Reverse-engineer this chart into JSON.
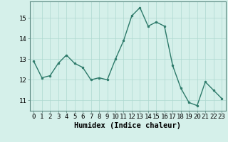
{
  "x": [
    0,
    1,
    2,
    3,
    4,
    5,
    6,
    7,
    8,
    9,
    10,
    11,
    12,
    13,
    14,
    15,
    16,
    17,
    18,
    19,
    20,
    21,
    22,
    23
  ],
  "y": [
    12.9,
    12.1,
    12.2,
    12.8,
    13.2,
    12.8,
    12.6,
    12.0,
    12.1,
    12.0,
    13.0,
    13.9,
    15.1,
    15.5,
    14.6,
    14.8,
    14.6,
    12.7,
    11.6,
    10.9,
    10.75,
    11.9,
    11.5,
    11.1
  ],
  "line_color": "#2d7a6a",
  "marker_color": "#2d7a6a",
  "bg_color": "#d5f0ea",
  "grid_color": "#aed8d0",
  "xlabel": "Humidex (Indice chaleur)",
  "ylim": [
    10.5,
    15.8
  ],
  "xlim": [
    -0.5,
    23.5
  ],
  "yticks": [
    11,
    12,
    13,
    14,
    15
  ],
  "xticks": [
    0,
    1,
    2,
    3,
    4,
    5,
    6,
    7,
    8,
    9,
    10,
    11,
    12,
    13,
    14,
    15,
    16,
    17,
    18,
    19,
    20,
    21,
    22,
    23
  ],
  "xtick_labels": [
    "0",
    "1",
    "2",
    "3",
    "4",
    "5",
    "6",
    "7",
    "8",
    "9",
    "10",
    "11",
    "12",
    "13",
    "14",
    "15",
    "16",
    "17",
    "18",
    "19",
    "20",
    "21",
    "22",
    "23"
  ],
  "tick_font_size": 6.5,
  "label_font_size": 7.5
}
